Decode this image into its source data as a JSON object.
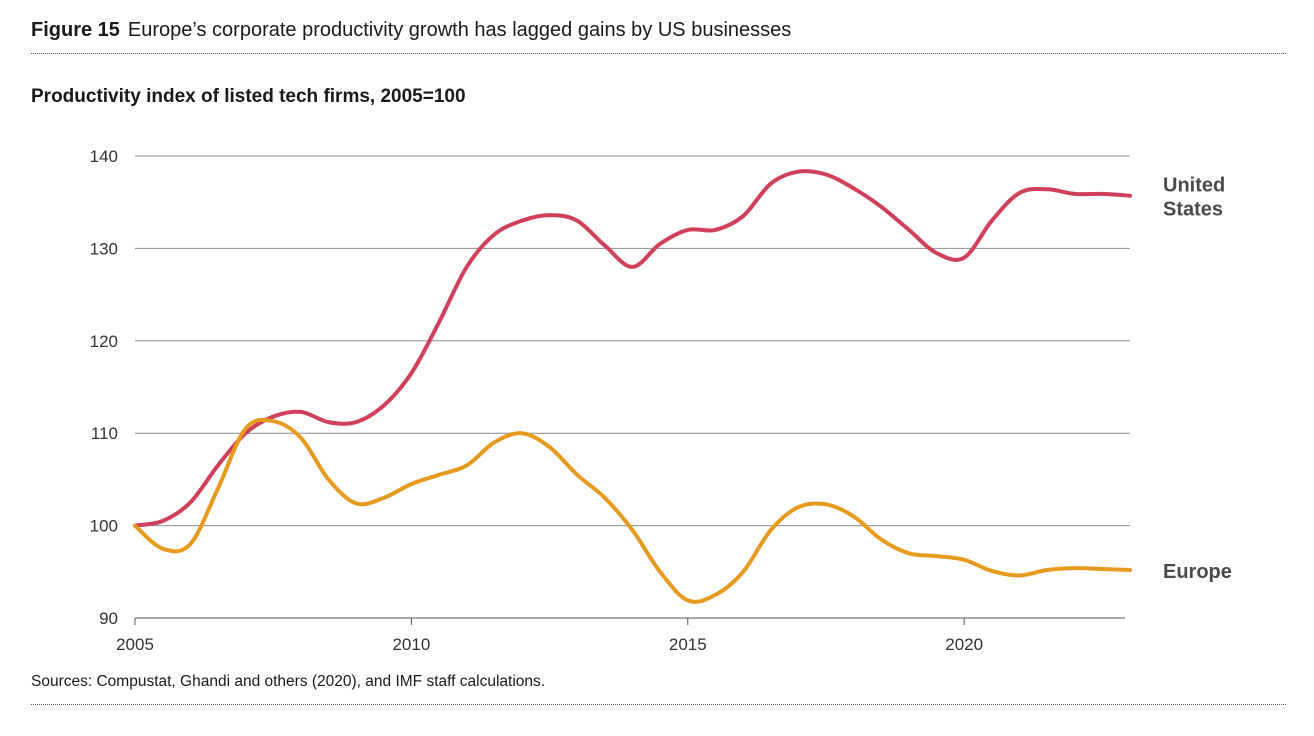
{
  "figure": {
    "number": "Figure 15",
    "title": "Europe’s corporate productivity growth has lagged gains by US businesses"
  },
  "source_note": "Sources: Compustat, Ghandi and others (2020), and IMF staff calculations.",
  "chart_data": {
    "type": "line",
    "title": "Productivity index of listed tech firms, 2005=100",
    "xlabel": "",
    "ylabel": "",
    "xlim": [
      2005,
      2023
    ],
    "ylim": [
      90,
      140
    ],
    "x_ticks": [
      2005,
      2010,
      2015,
      2020
    ],
    "y_ticks": [
      90,
      100,
      110,
      120,
      130,
      140
    ],
    "grid": "horizontal",
    "series": [
      {
        "name": "United States",
        "label_lines": [
          "United",
          "States"
        ],
        "color": "#d0405a",
        "x": [
          2005,
          2005.5,
          2006,
          2006.5,
          2007,
          2007.5,
          2008,
          2008.5,
          2009,
          2009.5,
          2010,
          2010.5,
          2011,
          2011.5,
          2012,
          2012.5,
          2013,
          2013.5,
          2014,
          2014.5,
          2015,
          2015.5,
          2016,
          2016.5,
          2017,
          2017.5,
          2018,
          2018.5,
          2019,
          2019.5,
          2020,
          2020.5,
          2021,
          2021.5,
          2022,
          2022.5,
          2023
        ],
        "y": [
          100,
          100.5,
          102.5,
          106.5,
          110,
          111.8,
          112.3,
          111.2,
          111.2,
          113,
          116.5,
          122,
          128,
          131.5,
          133,
          133.6,
          133,
          130.3,
          128,
          130.5,
          132,
          132,
          133.5,
          137,
          138.3,
          138,
          136.5,
          134.5,
          132,
          129.5,
          129,
          133,
          136,
          136.4,
          135.9,
          135.9,
          135.7
        ]
      },
      {
        "name": "Europe",
        "label_lines": [
          "Europe"
        ],
        "color": "#e69b1e",
        "x": [
          2005,
          2005.5,
          2006,
          2006.5,
          2007,
          2007.5,
          2008,
          2008.5,
          2009,
          2009.5,
          2010,
          2010.5,
          2011,
          2011.5,
          2012,
          2012.5,
          2013,
          2013.5,
          2014,
          2014.5,
          2015,
          2015.5,
          2016,
          2016.5,
          2017,
          2017.5,
          2018,
          2018.5,
          2019,
          2019.5,
          2020,
          2020.5,
          2021,
          2021.5,
          2022,
          2022.5,
          2023
        ],
        "y": [
          100,
          97.5,
          98,
          104,
          110.5,
          111.3,
          109.5,
          105,
          102.4,
          103,
          104.5,
          105.5,
          106.5,
          109,
          110,
          108.5,
          105.5,
          103,
          99.5,
          95,
          91.9,
          92.5,
          95,
          99.5,
          102,
          102.3,
          101,
          98.5,
          97,
          96.7,
          96.3,
          95.1,
          94.6,
          95.2,
          95.4,
          95.3,
          95.2
        ]
      }
    ]
  }
}
